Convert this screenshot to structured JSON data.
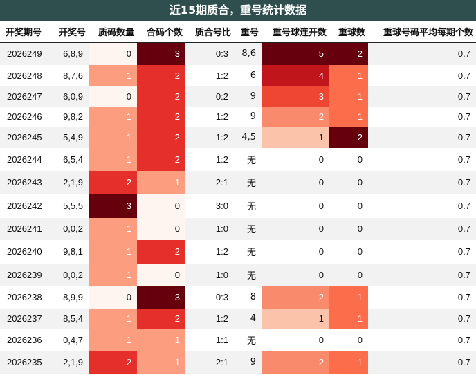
{
  "title": "近15期质合，重号统计数据",
  "columns": [
    "开奖期号",
    "开奖号",
    "质码数量",
    "合码个数",
    "质合号比",
    "重号",
    "重号球连开数",
    "重球数",
    "重球号码平均每期个数"
  ],
  "colors": {
    "title_bg": "#2f4f4f",
    "heat_scale": [
      "#fff5f0",
      "#fc9d7f",
      "#e42f2a",
      "#67000d"
    ],
    "repeat_run_scale": [
      "#fff5f0",
      "#fcc3ab",
      "#f98b6c",
      "#ef4533",
      "#c0151b",
      "#67000d"
    ],
    "repeat_ball_scale": [
      "#fff5f0",
      "#fc6d4c",
      "#67000d"
    ],
    "stripe": "#f2f2f2"
  },
  "rows": [
    {
      "period": "2026249",
      "numbers": "6,8,9",
      "prime_count": 0,
      "composite_count": 3,
      "ratio": "0:3",
      "repeat": "8,6",
      "repeat_run": 5,
      "repeat_balls": 2,
      "avg": "0.7"
    },
    {
      "period": "2026248",
      "numbers": "8,7,6",
      "prime_count": 1,
      "composite_count": 2,
      "ratio": "1:2",
      "repeat": "6",
      "repeat_run": 4,
      "repeat_balls": 1,
      "avg": "0.7"
    },
    {
      "period": "2026247",
      "numbers": "6,0,9",
      "prime_count": 0,
      "composite_count": 2,
      "ratio": "0:2",
      "repeat": "9",
      "repeat_run": 3,
      "repeat_balls": 1,
      "avg": "0.7"
    },
    {
      "period": "2026246",
      "numbers": "9,8,2",
      "prime_count": 1,
      "composite_count": 2,
      "ratio": "1:2",
      "repeat": "9",
      "repeat_run": 2,
      "repeat_balls": 1,
      "avg": "0.7"
    },
    {
      "period": "2026245",
      "numbers": "5,4,9",
      "prime_count": 1,
      "composite_count": 2,
      "ratio": "1:2",
      "repeat": "4,5",
      "repeat_run": 1,
      "repeat_balls": 2,
      "avg": "0.7"
    },
    {
      "period": "2026244",
      "numbers": "6,5,4",
      "prime_count": 1,
      "composite_count": 2,
      "ratio": "1:2",
      "repeat": "无",
      "repeat_run": 0,
      "repeat_balls": 0,
      "avg": "0.7"
    },
    {
      "period": "2026243",
      "numbers": "2,1,9",
      "prime_count": 2,
      "composite_count": 1,
      "ratio": "2:1",
      "repeat": "无",
      "repeat_run": 0,
      "repeat_balls": 0,
      "avg": "0.7"
    },
    {
      "period": "2026242",
      "numbers": "5,5,5",
      "prime_count": 3,
      "composite_count": 0,
      "ratio": "3:0",
      "repeat": "无",
      "repeat_run": 0,
      "repeat_balls": 0,
      "avg": "0.7"
    },
    {
      "period": "2026241",
      "numbers": "0,0,2",
      "prime_count": 1,
      "composite_count": 0,
      "ratio": "1:0",
      "repeat": "无",
      "repeat_run": 0,
      "repeat_balls": 0,
      "avg": "0.7"
    },
    {
      "period": "2026240",
      "numbers": "9,8,1",
      "prime_count": 1,
      "composite_count": 2,
      "ratio": "1:2",
      "repeat": "无",
      "repeat_run": 0,
      "repeat_balls": 0,
      "avg": "0.7"
    },
    {
      "period": "2026239",
      "numbers": "0,0,2",
      "prime_count": 1,
      "composite_count": 0,
      "ratio": "1:0",
      "repeat": "无",
      "repeat_run": 0,
      "repeat_balls": 0,
      "avg": "0.7"
    },
    {
      "period": "2026238",
      "numbers": "8,9,9",
      "prime_count": 0,
      "composite_count": 3,
      "ratio": "0:3",
      "repeat": "8",
      "repeat_run": 2,
      "repeat_balls": 1,
      "avg": "0.7"
    },
    {
      "period": "2026237",
      "numbers": "8,5,4",
      "prime_count": 1,
      "composite_count": 2,
      "ratio": "1:2",
      "repeat": "4",
      "repeat_run": 1,
      "repeat_balls": 1,
      "avg": "0.7"
    },
    {
      "period": "2026236",
      "numbers": "0,4,7",
      "prime_count": 1,
      "composite_count": 1,
      "ratio": "1:1",
      "repeat": "无",
      "repeat_run": 0,
      "repeat_balls": 0,
      "avg": "0.7"
    },
    {
      "period": "2026235",
      "numbers": "2,1,9",
      "prime_count": 2,
      "composite_count": 1,
      "ratio": "2:1",
      "repeat": "9",
      "repeat_run": 2,
      "repeat_balls": 1,
      "avg": "0.7"
    }
  ]
}
